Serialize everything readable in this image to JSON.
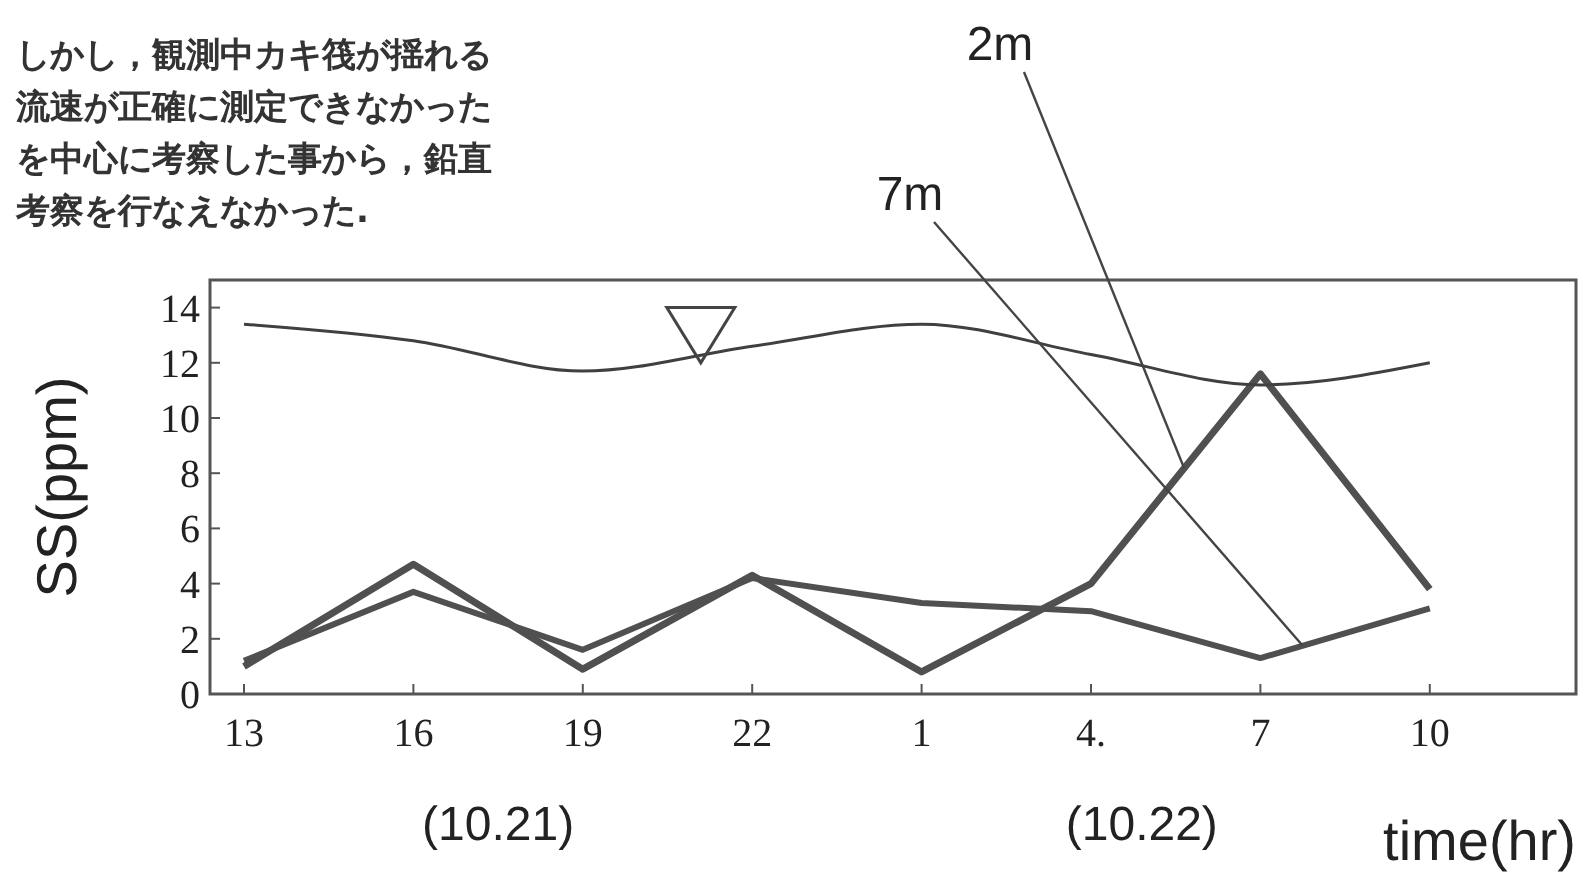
{
  "chart_data": {
    "type": "line",
    "xlabel": "time(hr)",
    "ylabel": "SS(ppm)",
    "categories": [
      "13",
      "16",
      "19",
      "22",
      "1",
      "4.",
      "7",
      "10"
    ],
    "ylim": [
      0,
      15
    ],
    "yticks": [
      0,
      2,
      4,
      6,
      8,
      10,
      12,
      14
    ],
    "grid": false,
    "marker": "none",
    "line_style": "solid",
    "series": [
      {
        "name": "2m",
        "color": "#505050",
        "values": [
          1.0,
          4.7,
          0.9,
          4.3,
          0.8,
          4.0,
          11.6,
          3.8
        ]
      },
      {
        "name": "7m",
        "color": "#505050",
        "values": [
          1.2,
          3.7,
          1.6,
          4.2,
          3.3,
          3.0,
          1.3,
          3.1
        ]
      },
      {
        "color": "#404040",
        "values": [
          13.4,
          12.8,
          11.7,
          12.6,
          13.4,
          12.3,
          11.2,
          12.0
        ]
      }
    ],
    "annotations": [
      "しかし，観測中カキ筏が揺れる",
      "流速が正確に測定できなかった",
      "を中心に考察した事から，鉛直",
      "考察を行なえなかった.",
      "(10.21)",
      "(10.22)"
    ]
  }
}
